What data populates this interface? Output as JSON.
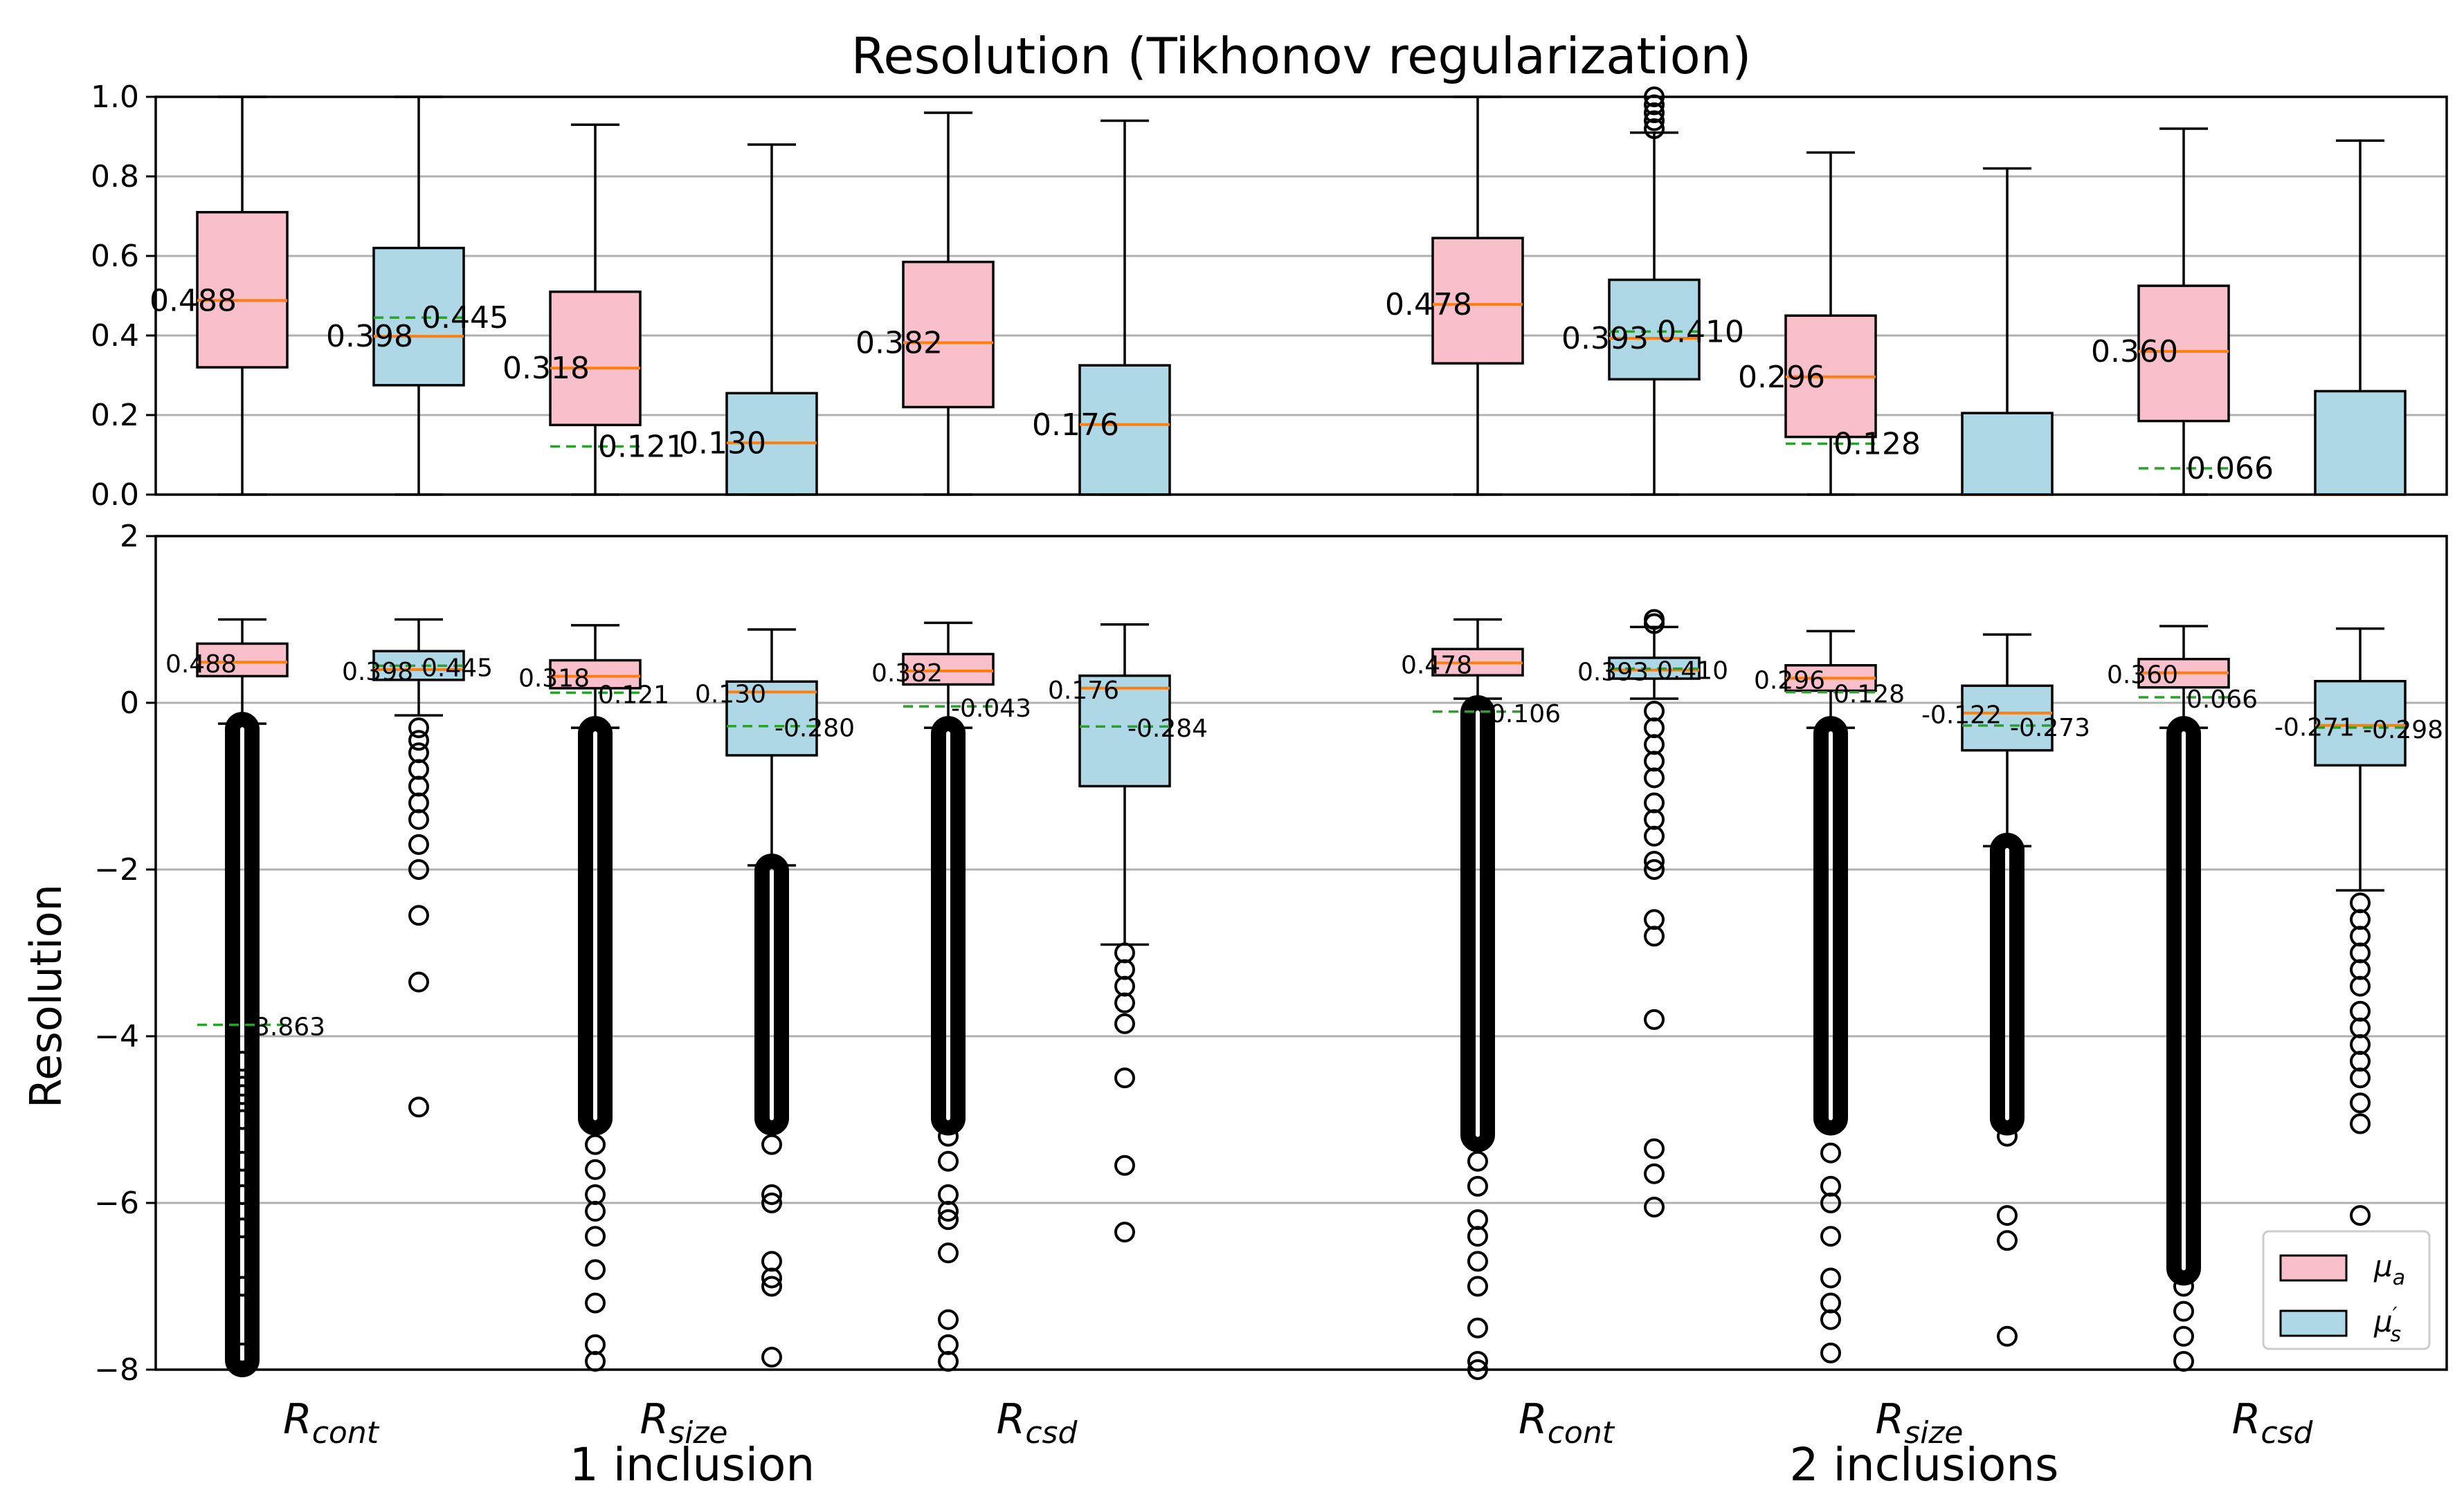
{
  "chart_data": {
    "type": "box",
    "title": "Resolution (Tikhonov regularization)",
    "ylabel": "Resolution",
    "legend": {
      "placement": "lower-right",
      "entries": [
        {
          "label": "μa",
          "base": "μ",
          "sub": "a",
          "color": "#f9c0cb"
        },
        {
          "label": "μ's",
          "base": "μ",
          "sup": "′",
          "sub": "s",
          "color": "#aed8e6"
        }
      ]
    },
    "grid": true,
    "colors": {
      "mu_a": "#f9c0cb",
      "mu_s": "#aed8e6",
      "median": "#ff7f0e",
      "mean": "#2ca02c"
    },
    "categories": [
      {
        "base": "R",
        "sub": "cont"
      },
      {
        "base": "R",
        "sub": "size"
      },
      {
        "base": "R",
        "sub": "csd"
      },
      {
        "base": "R",
        "sub": "cont"
      },
      {
        "base": "R",
        "sub": "size"
      },
      {
        "base": "R",
        "sub": "csd"
      }
    ],
    "groups": [
      "1 inclusion",
      "2 inclusions"
    ],
    "panels": [
      {
        "name": "top",
        "ylim": [
          0,
          1
        ],
        "yticks": [
          "0.0",
          "0.2",
          "0.4",
          "0.6",
          "0.8",
          "1.0"
        ],
        "boxes": [
          {
            "series": "mu_a",
            "q1": 0.32,
            "median": 0.488,
            "q3": 0.71,
            "whislo": 0.0,
            "whishi": 1.0,
            "median_label": "0.488"
          },
          {
            "series": "mu_s",
            "q1": 0.275,
            "median": 0.398,
            "q3": 0.62,
            "whislo": 0.0,
            "whishi": 1.0,
            "mean": 0.445,
            "median_label": "0.398",
            "mean_label": "0.445"
          },
          {
            "series": "mu_a",
            "q1": 0.175,
            "median": 0.318,
            "q3": 0.51,
            "whislo": 0.0,
            "whishi": 0.93,
            "mean": 0.121,
            "median_label": "0.318",
            "mean_label": "0.121"
          },
          {
            "series": "mu_s",
            "q1": 0.0,
            "median": 0.13,
            "q3": 0.255,
            "whislo": 0.0,
            "whishi": 0.88,
            "median_label": "0.130"
          },
          {
            "series": "mu_a",
            "q1": 0.22,
            "median": 0.382,
            "q3": 0.585,
            "whislo": 0.0,
            "whishi": 0.96,
            "median_label": "0.382"
          },
          {
            "series": "mu_s",
            "q1": 0.0,
            "median": 0.176,
            "q3": 0.325,
            "whislo": 0.0,
            "whishi": 0.94,
            "median_label": "0.176"
          },
          {
            "series": "mu_a",
            "q1": 0.33,
            "median": 0.478,
            "q3": 0.645,
            "whislo": 0.0,
            "whishi": 1.0,
            "median_label": "0.478"
          },
          {
            "series": "mu_s",
            "q1": 0.29,
            "median": 0.393,
            "q3": 0.54,
            "whislo": 0.0,
            "whishi": 0.91,
            "mean": 0.41,
            "median_label": "0.393",
            "mean_label": "0.410",
            "fliers": [
              0.92,
              0.94,
              0.96,
              0.98,
              1.0
            ]
          },
          {
            "series": "mu_a",
            "q1": 0.145,
            "median": 0.296,
            "q3": 0.45,
            "whislo": 0.0,
            "whishi": 0.86,
            "mean": 0.128,
            "median_label": "0.296",
            "mean_label": "0.128"
          },
          {
            "series": "mu_s",
            "q1": 0.0,
            "median": 0.0,
            "q3": 0.205,
            "whislo": 0.0,
            "whishi": 0.82
          },
          {
            "series": "mu_a",
            "q1": 0.185,
            "median": 0.36,
            "q3": 0.525,
            "whislo": 0.0,
            "whishi": 0.92,
            "mean": 0.066,
            "median_label": "0.360",
            "mean_label": "0.066"
          },
          {
            "series": "mu_s",
            "q1": 0.0,
            "median": 0.0,
            "q3": 0.26,
            "whislo": 0.0,
            "whishi": 0.89
          }
        ]
      },
      {
        "name": "bottom",
        "ylim": [
          -8,
          2
        ],
        "yticks": [
          "−8",
          "−6",
          "−4",
          "−2",
          "0",
          "2"
        ],
        "boxes": [
          {
            "series": "mu_a",
            "q1": 0.32,
            "median": 0.488,
            "q3": 0.71,
            "whislo": -0.25,
            "whishi": 1.0,
            "mean": -3.863,
            "median_label": "0.488",
            "mean_label": "-3.863",
            "flier_range": [
              -7.9,
              -0.3
            ],
            "fliers": [
              -4.3,
              -4.6,
              -4.7,
              -5.0,
              -5.5,
              -5.9,
              -6.3,
              -7.0,
              -7.8
            ]
          },
          {
            "series": "mu_s",
            "q1": 0.275,
            "median": 0.398,
            "q3": 0.62,
            "whislo": -0.15,
            "whishi": 1.0,
            "mean": 0.445,
            "median_label": "0.398",
            "mean_label": "0.445",
            "fliers": [
              -0.3,
              -0.45,
              -0.6,
              -0.8,
              -1.0,
              -1.2,
              -1.4,
              -1.7,
              -2.0,
              -2.55,
              -3.35,
              -4.85
            ]
          },
          {
            "series": "mu_a",
            "q1": 0.175,
            "median": 0.318,
            "q3": 0.51,
            "whislo": -0.3,
            "whishi": 0.93,
            "mean": 0.121,
            "median_label": "0.318",
            "mean_label": "0.121",
            "flier_range": [
              -5.0,
              -0.35
            ],
            "fliers": [
              -5.3,
              -5.6,
              -5.9,
              -6.1,
              -6.4,
              -6.8,
              -7.2,
              -7.7,
              -7.9
            ]
          },
          {
            "series": "mu_s",
            "q1": -0.63,
            "median": 0.13,
            "q3": 0.255,
            "whislo": -1.95,
            "whishi": 0.88,
            "mean": -0.28,
            "median_label": "0.130",
            "mean_label": "-0.280",
            "flier_range": [
              -5.0,
              -2.0
            ],
            "fliers": [
              -5.3,
              -5.9,
              -6.0,
              -6.7,
              -6.9,
              -7.0,
              -7.85
            ]
          },
          {
            "series": "mu_a",
            "q1": 0.22,
            "median": 0.382,
            "q3": 0.585,
            "whislo": -0.3,
            "whishi": 0.96,
            "mean": -0.043,
            "median_label": "0.382",
            "mean_label": "-0.043",
            "flier_range": [
              -5.0,
              -0.35
            ],
            "fliers": [
              -5.2,
              -5.5,
              -5.9,
              -6.1,
              -6.2,
              -6.6,
              -7.4,
              -7.7,
              -7.9
            ]
          },
          {
            "series": "mu_s",
            "q1": -1.0,
            "median": 0.176,
            "q3": 0.325,
            "whislo": -2.9,
            "whishi": 0.94,
            "mean": -0.284,
            "median_label": "0.176",
            "mean_label": "-0.284",
            "fliers": [
              -3.0,
              -3.2,
              -3.4,
              -3.6,
              -3.85,
              -4.5,
              -5.55,
              -6.35
            ]
          },
          {
            "series": "mu_a",
            "q1": 0.33,
            "median": 0.478,
            "q3": 0.645,
            "whislo": 0.05,
            "whishi": 1.0,
            "mean": -0.106,
            "median_label": "0.478",
            "mean_label": "-0.106",
            "flier_range": [
              -5.2,
              -0.1
            ],
            "fliers": [
              -5.5,
              -5.8,
              -6.2,
              -6.4,
              -6.7,
              -7.0,
              -7.5,
              -7.9,
              -8.0
            ]
          },
          {
            "series": "mu_s",
            "q1": 0.29,
            "median": 0.393,
            "q3": 0.54,
            "whislo": 0.05,
            "whishi": 0.91,
            "mean": 0.41,
            "median_label": "0.393",
            "mean_label": "0.410",
            "fliers": [
              0.95,
              1.0,
              -0.1,
              -0.3,
              -0.5,
              -0.7,
              -0.9,
              -1.2,
              -1.4,
              -1.6,
              -1.9,
              -2.0,
              -2.6,
              -2.8,
              -3.8,
              -5.35,
              -5.65,
              -6.05
            ]
          },
          {
            "series": "mu_a",
            "q1": 0.145,
            "median": 0.296,
            "q3": 0.45,
            "whislo": -0.3,
            "whishi": 0.86,
            "mean": 0.128,
            "median_label": "0.296",
            "mean_label": "0.128",
            "flier_range": [
              -5.0,
              -0.35
            ],
            "fliers": [
              -5.4,
              -5.8,
              -6.0,
              -6.4,
              -6.9,
              -7.2,
              -7.4,
              -7.8
            ]
          },
          {
            "series": "mu_s",
            "q1": -0.57,
            "median": -0.122,
            "q3": 0.205,
            "whislo": -1.72,
            "whishi": 0.82,
            "mean": -0.273,
            "median_label": "-0.122",
            "mean_label": "-0.273",
            "flier_range": [
              -5.0,
              -1.75
            ],
            "fliers": [
              -5.2,
              -6.15,
              -6.45,
              -7.6
            ]
          },
          {
            "series": "mu_a",
            "q1": 0.185,
            "median": 0.36,
            "q3": 0.525,
            "whislo": -0.3,
            "whishi": 0.92,
            "mean": 0.066,
            "median_label": "0.360",
            "mean_label": "0.066",
            "flier_range": [
              -6.8,
              -0.35
            ],
            "fliers": [
              -7.0,
              -7.3,
              -7.6,
              -7.9
            ]
          },
          {
            "series": "mu_s",
            "q1": -0.75,
            "median": -0.271,
            "q3": 0.26,
            "whislo": -2.25,
            "whishi": 0.89,
            "mean": -0.298,
            "median_label": "-0.271",
            "mean_label": "-0.298",
            "fliers": [
              -2.4,
              -2.6,
              -2.8,
              -3.0,
              -3.2,
              -3.4,
              -3.7,
              -3.9,
              -4.1,
              -4.3,
              -4.5,
              -4.8,
              -5.05,
              -6.15
            ]
          }
        ]
      }
    ]
  }
}
